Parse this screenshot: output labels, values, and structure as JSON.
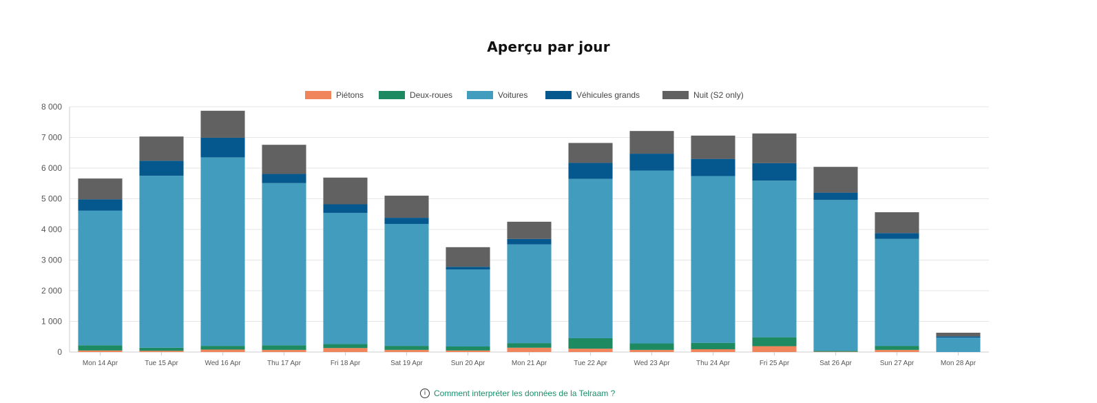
{
  "page": {
    "title": "Aperçu par jour",
    "footer_link": "Comment interpréter les données de la Telraam ?"
  },
  "chart_data": {
    "type": "bar",
    "stacked": true,
    "title": "Aperçu par jour",
    "xlabel": "",
    "ylabel": "",
    "ylim": [
      0,
      8000
    ],
    "yticks": [
      0,
      1000,
      2000,
      3000,
      4000,
      5000,
      6000,
      7000,
      8000
    ],
    "ytick_labels": [
      "0",
      "1 000",
      "2 000",
      "3 000",
      "4 000",
      "5 000",
      "6 000",
      "7 000",
      "8 000"
    ],
    "grid": true,
    "legend_position": "top",
    "categories": [
      "Mon 14 Apr",
      "Tue 15 Apr",
      "Wed 16 Apr",
      "Thu 17 Apr",
      "Fri 18 Apr",
      "Sat 19 Apr",
      "Sun 20 Apr",
      "Mon 21 Apr",
      "Tue 22 Apr",
      "Wed 23 Apr",
      "Thu 24 Apr",
      "Fri 25 Apr",
      "Sat 26 Apr",
      "Sun 27 Apr",
      "Mon 28 Apr"
    ],
    "series": [
      {
        "name": "Piétons",
        "color": "#f0845a",
        "values": [
          50,
          40,
          80,
          70,
          130,
          70,
          50,
          140,
          110,
          70,
          90,
          190,
          10,
          70,
          0
        ]
      },
      {
        "name": "Deux-roues",
        "color": "#1e8a62",
        "values": [
          170,
          100,
          120,
          150,
          130,
          130,
          130,
          150,
          340,
          210,
          210,
          290,
          30,
          130,
          0
        ]
      },
      {
        "name": "Voitures",
        "color": "#419cbe",
        "values": [
          4390,
          5610,
          6150,
          5290,
          4280,
          3980,
          2510,
          3220,
          5200,
          5640,
          5440,
          5110,
          4920,
          3490,
          470
        ]
      },
      {
        "name": "Véhicules grands",
        "color": "#05588e",
        "values": [
          370,
          490,
          640,
          300,
          280,
          200,
          90,
          180,
          520,
          550,
          560,
          570,
          240,
          190,
          40
        ]
      },
      {
        "name": "Nuit (S2 only)",
        "color": "#616161",
        "values": [
          680,
          790,
          880,
          950,
          870,
          720,
          640,
          560,
          650,
          740,
          760,
          970,
          840,
          680,
          120
        ]
      }
    ]
  }
}
